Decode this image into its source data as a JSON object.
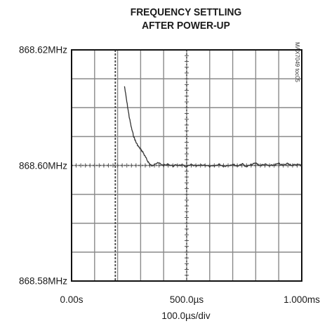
{
  "chart_data": {
    "type": "line",
    "title": [
      "FREQUENCY SETTLING",
      "AFTER POWER-UP"
    ],
    "xlabel": "100.0µs/div",
    "ylabel": "",
    "x_unit": "µs",
    "xlim": [
      0,
      1000
    ],
    "ylim": [
      868.58,
      868.62
    ],
    "grid": true,
    "x_divisions": 10,
    "y_divisions": 8,
    "x_tick_labels": [
      {
        "value": 0,
        "label": "0.00s"
      },
      {
        "value": 500,
        "label": "500.0µs"
      },
      {
        "value": 1000,
        "label": "1.000ms"
      }
    ],
    "y_tick_labels": [
      {
        "value": 868.62,
        "label": "868.62MHz"
      },
      {
        "value": 868.6,
        "label": "868.60MHz"
      },
      {
        "value": 868.58,
        "label": "868.58MHz"
      }
    ],
    "annotation": "MAX7049 toc05",
    "trigger_marker_x": 190,
    "series": [
      {
        "color": "#333333",
        "x": [
          230,
          240,
          250,
          260,
          270,
          280,
          290,
          300,
          310,
          320,
          330,
          340,
          350,
          360,
          380,
          400,
          420,
          440,
          460,
          480,
          500,
          520,
          540,
          560,
          580,
          600,
          620,
          640,
          660,
          680,
          700,
          720,
          740,
          760,
          780,
          800,
          820,
          840,
          860,
          880,
          900,
          920,
          940,
          960,
          980,
          1000
        ],
        "y": [
          868.6137,
          868.611,
          868.6085,
          868.6065,
          868.605,
          868.604,
          868.6033,
          868.6028,
          868.6023,
          868.6015,
          868.6008,
          868.6002,
          868.5999,
          868.6003,
          868.6004,
          868.6,
          868.6002,
          868.5999,
          868.6001,
          868.6,
          868.5998,
          868.6001,
          868.5999,
          868.6,
          868.6001,
          868.5998,
          868.5999,
          868.6002,
          868.5999,
          868.6,
          868.6002,
          868.5999,
          868.6003,
          868.5998,
          868.6001,
          868.6004,
          868.6,
          868.6002,
          868.5999,
          868.6001,
          868.6003,
          868.6,
          868.6004,
          868.6,
          868.6002,
          868.6
        ]
      }
    ]
  }
}
